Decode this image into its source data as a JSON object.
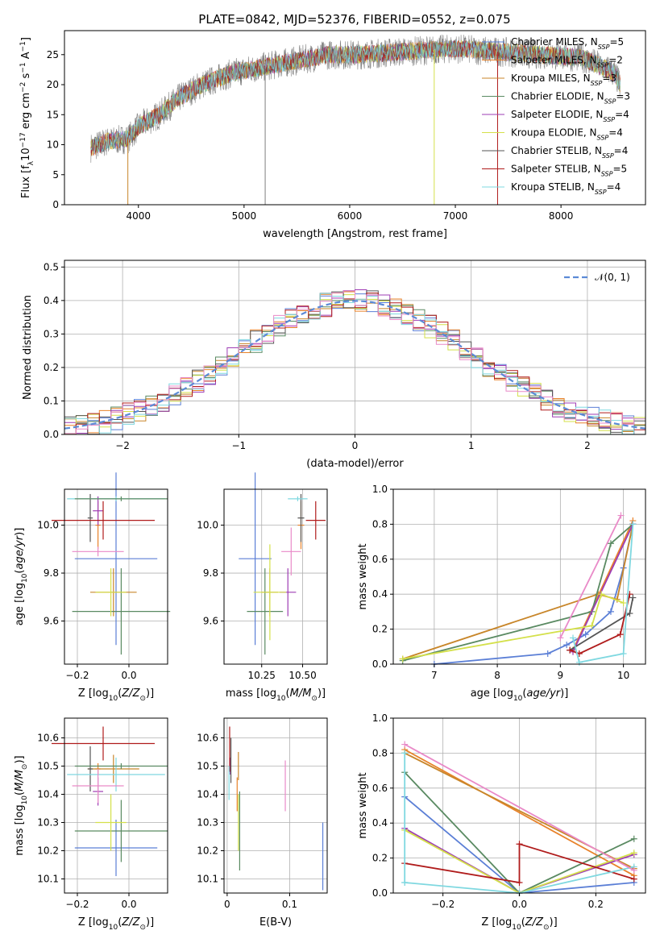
{
  "figure": {
    "title": "PLATE=0842, MJD=52376, FIBERID=0552, z=0.075",
    "colors": {
      "Chabrier MILES": "#5b7fd6",
      "Salpeter MILES": "#e8822a",
      "Kroupa MILES": "#c8862a",
      "Chabrier ELODIE": "#5a8a62",
      "Salpeter ELODIE": "#9e3cb4",
      "Kroupa ELODIE": "#d4e04a",
      "Chabrier STELIB": "#555555",
      "Salpeter STELIB": "#b01c1c",
      "Kroupa STELIB": "#7fd8e0",
      "MILES pink": "#e98ac8",
      "normal": "#5b8ad6",
      "spectrum_gray": "#808080"
    }
  },
  "chart_data": [
    {
      "id": "spectrum",
      "type": "line",
      "xlabel": "wavelength [Angstrom, rest frame]",
      "ylabel": "Flux [f_λ10^−17 erg cm^−2 s^−1 A^−1]",
      "xlim": [
        3300,
        8800
      ],
      "ylim": [
        0,
        29
      ],
      "xticks": [
        4000,
        5000,
        6000,
        7000,
        8000
      ],
      "yticks": [
        0,
        5,
        10,
        15,
        20,
        25
      ],
      "legend_placement": "right",
      "legend": [
        {
          "model": "Chabrier MILES",
          "n": "5"
        },
        {
          "model": "Salpeter MILES",
          "n": "2"
        },
        {
          "model": "Kroupa MILES",
          "n": "3"
        },
        {
          "model": "Chabrier ELODIE",
          "n": "3"
        },
        {
          "model": "Salpeter ELODIE",
          "n": "4"
        },
        {
          "model": "Kroupa ELODIE",
          "n": "4"
        },
        {
          "model": "Chabrier STELIB",
          "n": "4"
        },
        {
          "model": "Salpeter STELIB",
          "n": "5"
        },
        {
          "model": "Kroupa STELIB",
          "n": "4"
        }
      ],
      "continuum": [
        [
          3550,
          9.5
        ],
        [
          3700,
          10.5
        ],
        [
          3900,
          11
        ],
        [
          4000,
          13
        ],
        [
          4200,
          15
        ],
        [
          4400,
          18
        ],
        [
          4600,
          20
        ],
        [
          4900,
          22
        ],
        [
          5200,
          23
        ],
        [
          5500,
          24
        ],
        [
          5800,
          25
        ],
        [
          6100,
          25
        ],
        [
          6500,
          25.5
        ],
        [
          7000,
          26
        ],
        [
          7400,
          25.5
        ],
        [
          7800,
          25
        ],
        [
          8200,
          24.5
        ],
        [
          8500,
          22
        ],
        [
          8560,
          20
        ]
      ]
    },
    {
      "id": "residuals",
      "type": "line",
      "xlabel": "(data-model)/error",
      "ylabel": "Normed distribution",
      "xlim": [
        -2.5,
        2.5
      ],
      "ylim": [
        0,
        0.52
      ],
      "xticks": [
        -2,
        -1,
        0,
        1,
        2
      ],
      "xtick_labels": [
        "−2",
        "−1",
        "0",
        "1",
        "2"
      ],
      "yticks": [
        0.0,
        0.1,
        0.2,
        0.3,
        0.4,
        0.5
      ],
      "legend_placement": "top-right",
      "legend": [
        {
          "name": "𝒩(0, 1)"
        }
      ],
      "grid": true
    },
    {
      "id": "age_Z",
      "type": "scatter",
      "xlabel": "Z [log10(Z/Z⊙)]",
      "ylabel": "age [log10(age/yr)]",
      "xlim": [
        -0.25,
        0.15
      ],
      "ylim": [
        9.42,
        10.15
      ],
      "xticks": [
        -0.2,
        0.0
      ],
      "xtick_labels": [
        "−0.2",
        "0.0"
      ],
      "yticks": [
        9.6,
        9.8,
        10.0
      ],
      "points": [
        {
          "c": "Chabrier MILES",
          "x": -0.05,
          "xe": 0.16,
          "y": 9.86,
          "ye": 0.36
        },
        {
          "c": "Salpeter MILES",
          "x": -0.12,
          "xe": 0.01,
          "y": 10.0,
          "ye": 0.1
        },
        {
          "c": "Kroupa MILES",
          "x": -0.06,
          "xe": 0.09,
          "y": 9.72,
          "ye": 0.1
        },
        {
          "c": "Chabrier ELODIE",
          "x": -0.03,
          "xe": 0.19,
          "y": 9.64,
          "ye": 0.18
        },
        {
          "c": "Salpeter ELODIE",
          "x": -0.12,
          "xe": 0.02,
          "y": 10.06,
          "ye": 0.06
        },
        {
          "c": "Kroupa ELODIE",
          "x": -0.07,
          "xe": 0.06,
          "y": 9.72,
          "ye": 0.1
        },
        {
          "c": "Chabrier STELIB",
          "x": -0.15,
          "xe": 0.01,
          "y": 10.03,
          "ye": 0.1
        },
        {
          "c": "Salpeter STELIB",
          "x": -0.1,
          "xe": 0.2,
          "y": 10.02,
          "ye": 0.08
        },
        {
          "c": "Kroupa STELIB",
          "x": -0.05,
          "xe": 0.19,
          "y": 10.11,
          "ye": 0.01
        },
        {
          "c": "MILES pink",
          "x": -0.12,
          "xe": 0.1,
          "y": 9.89,
          "ye": 0.02
        },
        {
          "c": "Chabrier ELODIE",
          "x": -0.03,
          "xe": 0.18,
          "y": 10.11,
          "ye": 0.01
        }
      ]
    },
    {
      "id": "age_mass",
      "type": "scatter",
      "xlabel": "mass [log10(M/M⊙)]",
      "xlim": [
        10.02,
        10.65
      ],
      "ylim": [
        9.42,
        10.15
      ],
      "xticks": [
        10.25,
        10.5
      ],
      "xtick_labels": [
        "10.25",
        "10.50"
      ],
      "yticks": [
        9.6,
        9.8,
        10.0
      ],
      "points": [
        {
          "c": "Chabrier MILES",
          "x": 10.21,
          "xe": 0.1,
          "y": 9.86,
          "ye": 0.36
        },
        {
          "c": "Salpeter MILES",
          "x": 10.49,
          "xe": 0.02,
          "y": 10.0,
          "ye": 0.1
        },
        {
          "c": "Kroupa MILES",
          "x": 10.3,
          "xe": 0.05,
          "y": 9.72,
          "ye": 0.1
        },
        {
          "c": "Chabrier ELODIE",
          "x": 10.27,
          "xe": 0.11,
          "y": 9.64,
          "ye": 0.18
        },
        {
          "c": "Salpeter ELODIE",
          "x": 10.41,
          "xe": 0.05,
          "y": 9.72,
          "ye": 0.1
        },
        {
          "c": "Kroupa ELODIE",
          "x": 10.3,
          "xe": 0.1,
          "y": 9.72,
          "ye": 0.2
        },
        {
          "c": "Chabrier STELIB",
          "x": 10.49,
          "xe": 0.02,
          "y": 10.03,
          "ye": 0.1
        },
        {
          "c": "Salpeter STELIB",
          "x": 10.58,
          "xe": 0.06,
          "y": 10.02,
          "ye": 0.08
        },
        {
          "c": "Kroupa STELIB",
          "x": 10.47,
          "xe": 0.06,
          "y": 10.11,
          "ye": 0.01
        },
        {
          "c": "MILES pink",
          "x": 10.43,
          "xe": 0.06,
          "y": 9.89,
          "ye": 0.1
        }
      ]
    },
    {
      "id": "weight_age",
      "type": "line",
      "xlabel": "age [log10(age/yr)]",
      "ylabel": "mass weight",
      "xlim": [
        6.35,
        10.35
      ],
      "ylim": [
        0,
        1
      ],
      "xticks": [
        7,
        8,
        9,
        10
      ],
      "yticks": [
        0.0,
        0.2,
        0.4,
        0.6,
        0.8,
        1.0
      ],
      "series": [
        {
          "c": "Chabrier MILES",
          "pts": [
            [
              7,
              0
            ],
            [
              8.8,
              0.06
            ],
            [
              9.1,
              0.11
            ],
            [
              9.4,
              0.17
            ],
            [
              9.8,
              0.3
            ],
            [
              10,
              0.55
            ],
            [
              10.15,
              0.8
            ]
          ]
        },
        {
          "c": "Salpeter MILES",
          "pts": [
            [
              9.2,
              0.08
            ],
            [
              10.15,
              0.82
            ]
          ]
        },
        {
          "c": "Kroupa MILES",
          "pts": [
            [
              6.5,
              0.03
            ],
            [
              9.6,
              0.4
            ],
            [
              9.9,
              0.37
            ],
            [
              10.15,
              0.8
            ]
          ]
        },
        {
          "c": "Chabrier ELODIE",
          "pts": [
            [
              6.5,
              0.02
            ],
            [
              9.5,
              0.3
            ],
            [
              9.8,
              0.69
            ],
            [
              10.15,
              0.8
            ]
          ]
        },
        {
          "c": "Salpeter ELODIE",
          "pts": [
            [
              9.2,
              0.07
            ],
            [
              10.15,
              0.8
            ]
          ]
        },
        {
          "c": "Kroupa ELODIE",
          "pts": [
            [
              6.5,
              0.03
            ],
            [
              9.5,
              0.22
            ],
            [
              9.65,
              0.4
            ],
            [
              10,
              0.35
            ]
          ]
        },
        {
          "c": "Chabrier STELIB",
          "pts": [
            [
              9.15,
              0.08
            ],
            [
              10.1,
              0.29
            ],
            [
              10.15,
              0.38
            ]
          ]
        },
        {
          "c": "Salpeter STELIB",
          "pts": [
            [
              9.15,
              0.08
            ],
            [
              9.3,
              0.06
            ],
            [
              9.95,
              0.17
            ],
            [
              10.1,
              0.4
            ]
          ]
        },
        {
          "c": "Kroupa STELIB",
          "pts": [
            [
              9.2,
              0.15
            ],
            [
              9.3,
              0.01
            ],
            [
              10,
              0.06
            ],
            [
              10.15,
              0.8
            ]
          ]
        },
        {
          "c": "MILES pink",
          "pts": [
            [
              9,
              0.15
            ],
            [
              9.96,
              0.85
            ]
          ]
        }
      ]
    },
    {
      "id": "mass_Z",
      "type": "scatter",
      "xlabel": "Z [log10(Z/Z⊙)]",
      "ylabel": "mass [log10(M/M⊙)]",
      "xlim": [
        -0.25,
        0.15
      ],
      "ylim": [
        10.05,
        10.67
      ],
      "xticks": [
        -0.2,
        0.0
      ],
      "xtick_labels": [
        "−0.2",
        "0.0"
      ],
      "yticks": [
        10.1,
        10.2,
        10.3,
        10.4,
        10.5,
        10.6
      ],
      "points": [
        {
          "c": "Chabrier MILES",
          "x": -0.05,
          "xe": 0.16,
          "y": 10.21,
          "ye": 0.1
        },
        {
          "c": "Salpeter MILES",
          "x": -0.12,
          "xe": 0.01,
          "y": 10.49,
          "ye": 0.02
        },
        {
          "c": "Kroupa MILES",
          "x": -0.06,
          "xe": 0.1,
          "y": 10.49,
          "ye": 0.05
        },
        {
          "c": "Chabrier ELODIE",
          "x": -0.03,
          "xe": 0.18,
          "y": 10.27,
          "ye": 0.11
        },
        {
          "c": "Salpeter ELODIE",
          "x": -0.12,
          "xe": 0.02,
          "y": 10.41,
          "ye": 0.05
        },
        {
          "c": "Kroupa ELODIE",
          "x": -0.07,
          "xe": 0.06,
          "y": 10.3,
          "ye": 0.1
        },
        {
          "c": "Chabrier STELIB",
          "x": -0.15,
          "xe": 0.01,
          "y": 10.49,
          "ye": 0.08
        },
        {
          "c": "Salpeter STELIB",
          "x": -0.1,
          "xe": 0.2,
          "y": 10.58,
          "ye": 0.06
        },
        {
          "c": "Kroupa STELIB",
          "x": -0.05,
          "xe": 0.19,
          "y": 10.47,
          "ye": 0.06
        },
        {
          "c": "MILES pink",
          "x": -0.12,
          "xe": 0.1,
          "y": 10.43,
          "ye": 0.06
        },
        {
          "c": "Chabrier ELODIE",
          "x": -0.03,
          "xe": 0.18,
          "y": 10.5,
          "ye": 0.01
        }
      ]
    },
    {
      "id": "mass_ebv",
      "type": "scatter",
      "xlabel": "E(B-V)",
      "xlim": [
        -0.005,
        0.16
      ],
      "ylim": [
        10.05,
        10.67
      ],
      "xticks": [
        0.0,
        0.1
      ],
      "yticks": [
        10.1,
        10.2,
        10.3,
        10.4,
        10.5,
        10.6
      ],
      "points": [
        {
          "c": "Chabrier MILES",
          "x": 0.153,
          "y": 10.18,
          "ye": 0.12
        },
        {
          "c": "Salpeter MILES",
          "x": 0.016,
          "y": 10.4,
          "ye": 0.06
        },
        {
          "c": "Kroupa MILES",
          "x": 0.018,
          "y": 10.5,
          "ye": 0.05
        },
        {
          "c": "Chabrier ELODIE",
          "x": 0.02,
          "y": 10.27,
          "ye": 0.14
        },
        {
          "c": "Salpeter ELODIE",
          "x": 0.005,
          "y": 10.5,
          "ye": 0.03
        },
        {
          "c": "Kroupa ELODIE",
          "x": 0.018,
          "y": 10.3,
          "ye": 0.1
        },
        {
          "c": "Chabrier STELIB",
          "x": 0.006,
          "y": 10.52,
          "ye": 0.08
        },
        {
          "c": "Salpeter STELIB",
          "x": 0.004,
          "y": 10.56,
          "ye": 0.08
        },
        {
          "c": "Kroupa STELIB",
          "x": 0.003,
          "y": 10.44,
          "ye": 0.06
        },
        {
          "c": "MILES pink",
          "x": 0.093,
          "y": 10.43,
          "ye": 0.09
        }
      ]
    },
    {
      "id": "weight_Z",
      "type": "line",
      "xlabel": "Z [log10(Z/Z⊙)]",
      "ylabel": "mass weight",
      "xlim": [
        -0.33,
        0.33
      ],
      "ylim": [
        0,
        1
      ],
      "xticks": [
        -0.2,
        0.0,
        0.2
      ],
      "xtick_labels": [
        "−0.2",
        "0.0",
        "0.2"
      ],
      "yticks": [
        0.0,
        0.2,
        0.4,
        0.6,
        0.8,
        1.0
      ],
      "series": [
        {
          "c": "Chabrier MILES",
          "pts": [
            [
              -0.3,
              0.55
            ],
            [
              0,
              0
            ],
            [
              0.3,
              0.06
            ]
          ]
        },
        {
          "c": "Salpeter MILES",
          "pts": [
            [
              -0.3,
              0.82
            ],
            [
              0.3,
              0.1
            ]
          ]
        },
        {
          "c": "Kroupa MILES",
          "pts": [
            [
              -0.3,
              0.8
            ],
            [
              0.3,
              0.14
            ]
          ]
        },
        {
          "c": "Chabrier ELODIE",
          "pts": [
            [
              -0.3,
              0.69
            ],
            [
              0,
              0
            ],
            [
              0.3,
              0.31
            ]
          ]
        },
        {
          "c": "Salpeter ELODIE",
          "pts": [
            [
              -0.3,
              0.37
            ],
            [
              0,
              0
            ],
            [
              0.3,
              0.22
            ]
          ]
        },
        {
          "c": "Kroupa ELODIE",
          "pts": [
            [
              -0.3,
              0.36
            ],
            [
              0,
              0
            ],
            [
              0.3,
              0.23
            ]
          ]
        },
        {
          "c": "Salpeter STELIB",
          "pts": [
            [
              -0.3,
              0.17
            ],
            [
              0,
              0.06
            ],
            [
              0,
              0.28
            ],
            [
              0.3,
              0.08
            ]
          ]
        },
        {
          "c": "Kroupa STELIB",
          "pts": [
            [
              -0.3,
              0.06
            ],
            [
              -0.3,
              0.8
            ],
            [
              -0.3,
              0.06
            ],
            [
              0,
              0
            ],
            [
              0.3,
              0.15
            ]
          ]
        },
        {
          "c": "MILES pink",
          "pts": [
            [
              -0.3,
              0.85
            ],
            [
              0.3,
              0.13
            ]
          ]
        }
      ]
    }
  ]
}
